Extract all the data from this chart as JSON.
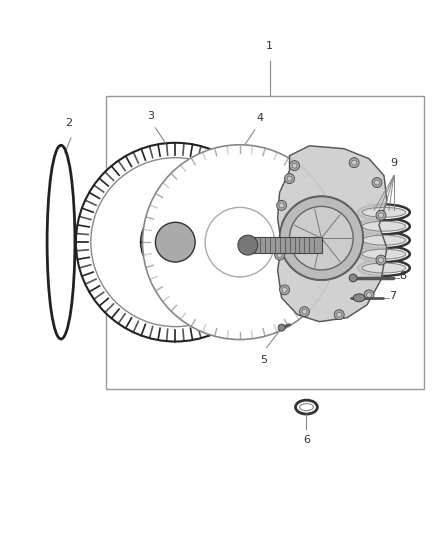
{
  "background_color": "#ffffff",
  "box_edge_color": "#888888",
  "label_color": "#333333",
  "line_color": "#888888",
  "part_dark": "#333333",
  "part_mid": "#888888",
  "part_light": "#cccccc",
  "figsize": [
    4.38,
    5.33
  ],
  "dpi": 100
}
